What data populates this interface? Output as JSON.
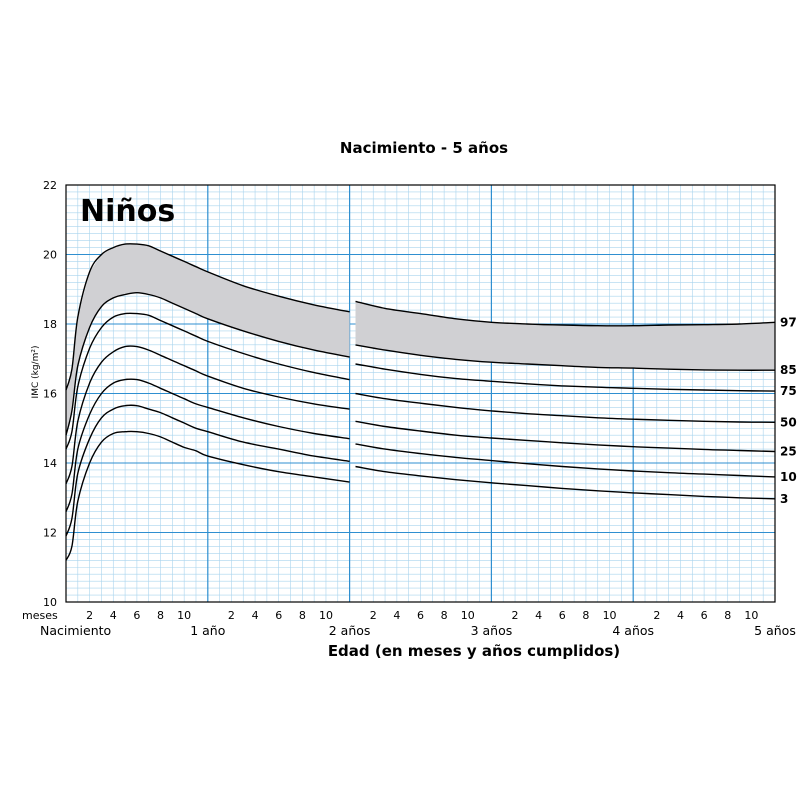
{
  "chart_data": {
    "type": "line",
    "title": "Nacimiento - 5 años",
    "panel_label": "Niños",
    "ylabel": "IMC (kg/m²)",
    "xlabel": "Edad (en meses y años cumplidos)",
    "ylim": [
      10,
      22
    ],
    "yticks": [
      10,
      12,
      14,
      16,
      18,
      20,
      22
    ],
    "xlim_months": [
      0,
      60
    ],
    "x_month_prefix": "meses",
    "x_month_ticks": [
      "2",
      "4",
      "6",
      "8",
      "10"
    ],
    "x_year_labels": [
      "Nacimiento",
      "1 año",
      "2 años",
      "3 años",
      "4 años",
      "5 años"
    ],
    "grid": true,
    "shaded_band": [
      "85",
      "97"
    ],
    "x_months": [
      0,
      0.5,
      1,
      2,
      3,
      4,
      5,
      6,
      7,
      8,
      9,
      10,
      11,
      12,
      15,
      18,
      21,
      24,
      24.5,
      27,
      30,
      33,
      36,
      39,
      42,
      45,
      48,
      51,
      54,
      57,
      60
    ],
    "series": [
      {
        "name": "97",
        "values": [
          16.1,
          16.7,
          18.2,
          19.5,
          20.0,
          20.2,
          20.3,
          20.3,
          20.25,
          20.1,
          19.95,
          19.8,
          19.65,
          19.5,
          19.1,
          18.8,
          18.55,
          18.35,
          18.65,
          18.45,
          18.3,
          18.15,
          18.05,
          18.0,
          17.97,
          17.95,
          17.95,
          17.97,
          17.98,
          18.0,
          18.05
        ]
      },
      {
        "name": "85",
        "values": [
          14.8,
          15.5,
          16.8,
          17.9,
          18.5,
          18.75,
          18.85,
          18.9,
          18.85,
          18.75,
          18.6,
          18.45,
          18.3,
          18.15,
          17.8,
          17.5,
          17.25,
          17.05,
          17.4,
          17.25,
          17.1,
          16.98,
          16.9,
          16.85,
          16.8,
          16.75,
          16.73,
          16.7,
          16.68,
          16.67,
          16.67
        ]
      },
      {
        "name": "75",
        "values": [
          14.4,
          14.9,
          16.2,
          17.3,
          17.9,
          18.2,
          18.3,
          18.3,
          18.25,
          18.1,
          17.95,
          17.8,
          17.65,
          17.5,
          17.15,
          16.85,
          16.6,
          16.4,
          16.85,
          16.7,
          16.55,
          16.43,
          16.35,
          16.28,
          16.22,
          16.18,
          16.15,
          16.12,
          16.1,
          16.08,
          16.07
        ]
      },
      {
        "name": "50",
        "values": [
          13.4,
          13.9,
          15.2,
          16.3,
          16.9,
          17.2,
          17.35,
          17.35,
          17.25,
          17.1,
          16.95,
          16.8,
          16.65,
          16.5,
          16.15,
          15.9,
          15.7,
          15.55,
          16.0,
          15.85,
          15.72,
          15.6,
          15.5,
          15.42,
          15.36,
          15.3,
          15.26,
          15.23,
          15.2,
          15.18,
          15.17
        ]
      },
      {
        "name": "25",
        "values": [
          12.6,
          13.1,
          14.4,
          15.4,
          16.0,
          16.3,
          16.4,
          16.4,
          16.3,
          16.15,
          16.0,
          15.85,
          15.7,
          15.6,
          15.3,
          15.05,
          14.85,
          14.7,
          15.2,
          15.05,
          14.92,
          14.8,
          14.72,
          14.65,
          14.58,
          14.52,
          14.47,
          14.43,
          14.39,
          14.36,
          14.33
        ]
      },
      {
        "name": "10",
        "values": [
          11.9,
          12.4,
          13.7,
          14.7,
          15.3,
          15.55,
          15.65,
          15.65,
          15.55,
          15.45,
          15.3,
          15.15,
          15.0,
          14.9,
          14.6,
          14.4,
          14.2,
          14.05,
          14.55,
          14.4,
          14.27,
          14.16,
          14.07,
          13.98,
          13.9,
          13.83,
          13.77,
          13.72,
          13.68,
          13.64,
          13.6
        ]
      },
      {
        "name": "3",
        "values": [
          11.2,
          11.6,
          12.9,
          14.0,
          14.6,
          14.85,
          14.9,
          14.9,
          14.85,
          14.75,
          14.6,
          14.45,
          14.35,
          14.2,
          13.95,
          13.75,
          13.6,
          13.45,
          13.9,
          13.75,
          13.63,
          13.52,
          13.43,
          13.35,
          13.27,
          13.2,
          13.14,
          13.09,
          13.04,
          13.0,
          12.97
        ]
      }
    ],
    "colors": {
      "grid_minor": "#a9d4ee",
      "grid_major": "#2f8fd0",
      "band_fill": "#d0d0d3",
      "curve": "#000000",
      "background": "#ffffff"
    }
  }
}
